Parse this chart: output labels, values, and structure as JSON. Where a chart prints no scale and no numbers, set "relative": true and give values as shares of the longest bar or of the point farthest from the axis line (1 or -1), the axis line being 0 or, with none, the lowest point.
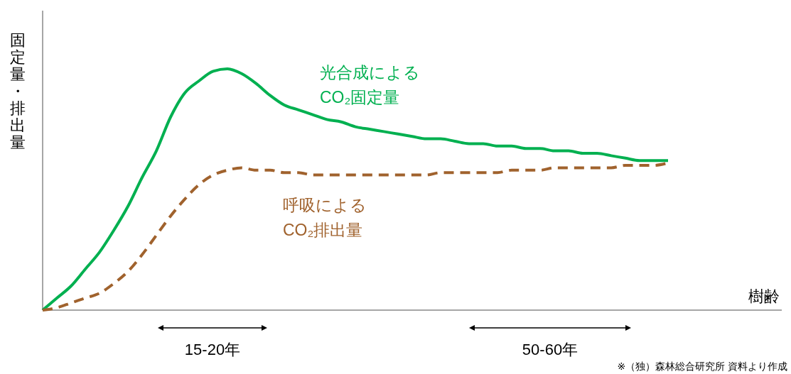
{
  "chart_data": {
    "type": "line",
    "xlabel": "樹齢",
    "ylabel": "固定量・排出量",
    "categories": [
      null,
      null,
      null,
      null,
      null,
      null,
      null,
      null,
      null,
      null,
      null,
      null,
      null,
      null,
      null,
      null,
      null,
      null,
      null,
      null,
      null,
      null,
      null,
      null,
      null,
      null,
      null,
      null,
      null,
      null,
      null,
      null,
      null,
      null,
      null,
      null,
      null,
      null,
      null,
      null,
      null,
      null,
      null,
      null,
      null,
      null,
      null,
      null,
      null,
      null,
      null,
      null,
      null
    ],
    "series": [
      {
        "name": "光合成による\nCO₂固定量",
        "color": "#00b050",
        "line_style": "solid",
        "values": [
          0,
          0.05,
          0.1,
          0.17,
          0.24,
          0.33,
          0.43,
          0.55,
          0.66,
          0.8,
          0.9,
          0.95,
          0.99,
          1,
          0.98,
          0.94,
          0.89,
          0.85,
          0.83,
          0.81,
          0.79,
          0.78,
          0.76,
          0.75,
          0.74,
          0.73,
          0.72,
          0.71,
          0.71,
          0.7,
          0.69,
          0.69,
          0.68,
          0.68,
          0.67,
          0.67,
          0.66,
          0.66,
          0.65,
          0.65,
          0.64,
          0.63,
          0.62,
          0.62,
          0.62,
          null,
          null,
          null,
          null,
          null,
          null,
          null,
          null
        ]
      },
      {
        "name": "呼吸による\nCO₂排出量",
        "color": "#a0622d",
        "line_style": "dashed",
        "values": [
          0,
          0.01,
          0.03,
          0.05,
          0.07,
          0.11,
          0.16,
          0.23,
          0.31,
          0.39,
          0.46,
          0.52,
          0.56,
          0.58,
          0.59,
          0.58,
          0.58,
          0.57,
          0.57,
          0.56,
          0.56,
          0.56,
          0.56,
          0.56,
          0.56,
          0.56,
          0.56,
          0.56,
          0.57,
          0.57,
          0.57,
          0.57,
          0.57,
          0.58,
          0.58,
          0.58,
          0.59,
          0.59,
          0.59,
          0.59,
          0.59,
          0.6,
          0.6,
          0.6,
          0.61,
          null,
          null,
          null,
          null,
          null,
          null,
          null,
          null
        ]
      }
    ],
    "annotations": [
      "15-20年",
      "50-60年",
      "※（独）森林総合研究所 資料より作成"
    ],
    "relative": true
  }
}
